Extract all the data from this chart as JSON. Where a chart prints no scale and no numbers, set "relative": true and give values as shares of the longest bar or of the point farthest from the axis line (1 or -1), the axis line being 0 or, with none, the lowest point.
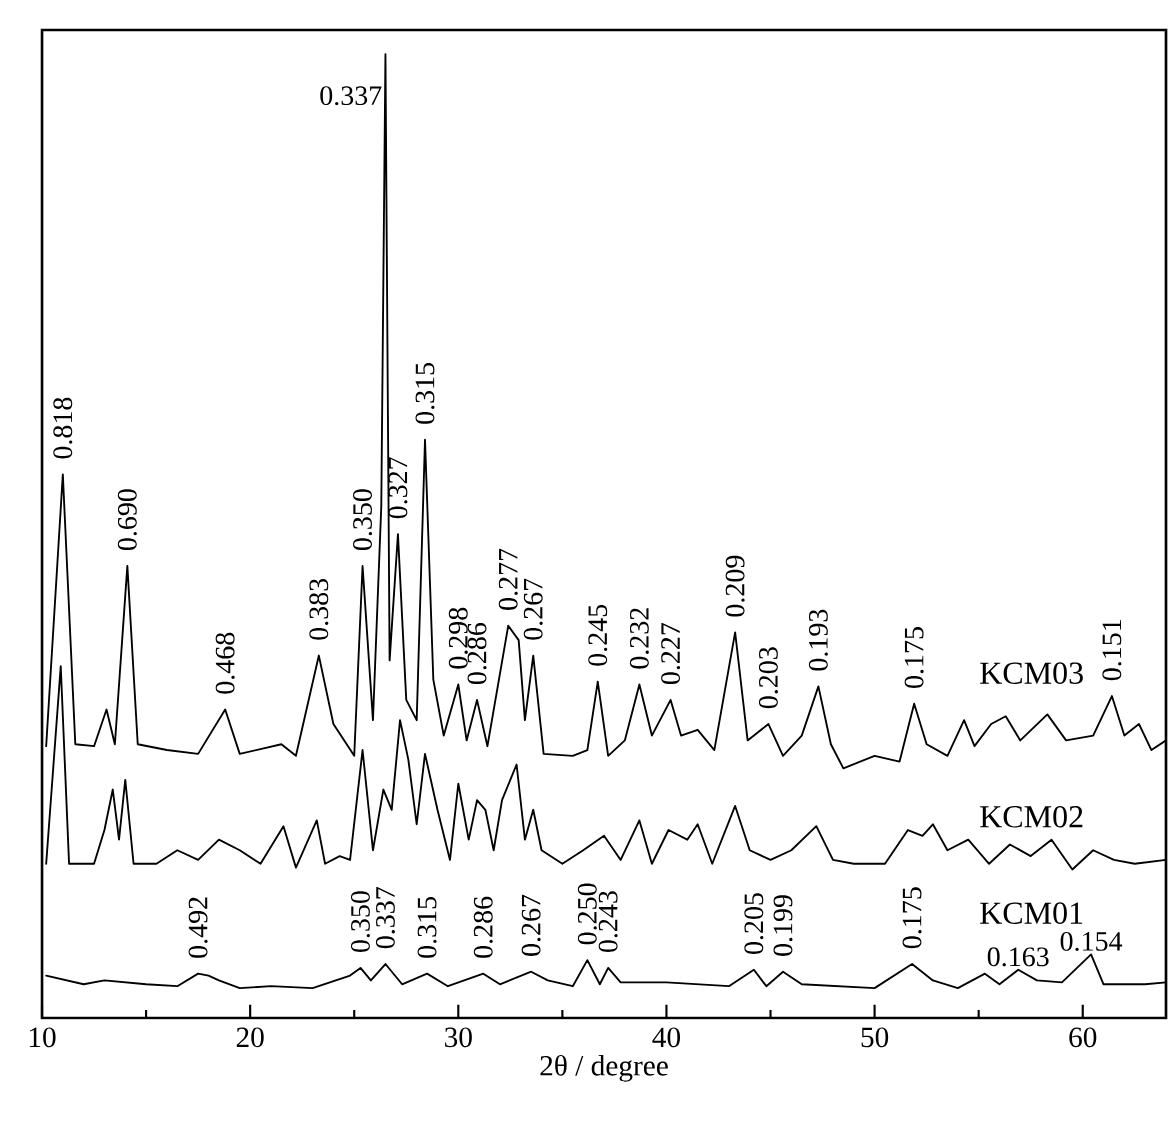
{
  "chart_data": {
    "type": "line",
    "relative": true,
    "xlabel": "2θ / degree",
    "xlim": [
      10,
      64
    ],
    "xticks": [
      10,
      20,
      30,
      40,
      50,
      60
    ],
    "series": [
      {
        "name": "KCM03",
        "color": "#000000",
        "x": [
          10.2,
          11.0,
          11.6,
          12.5,
          13.1,
          13.5,
          14.1,
          14.6,
          16,
          17.5,
          18.8,
          19.5,
          21.5,
          22.2,
          23.3,
          24,
          25,
          25.4,
          25.9,
          26.3,
          26.5,
          26.7,
          27.1,
          27.5,
          28.0,
          28.4,
          28.8,
          29.3,
          30.0,
          30.4,
          30.9,
          31.4,
          32.4,
          32.9,
          33.2,
          33.6,
          34.1,
          35.5,
          36.2,
          36.7,
          37.2,
          38.0,
          38.7,
          39.3,
          40.2,
          40.7,
          41.5,
          42.3,
          43.3,
          43.9,
          44.9,
          45.6,
          46.5,
          47.3,
          47.9,
          48.5,
          50,
          51.2,
          51.9,
          52.5,
          53.5,
          54.3,
          54.8,
          55.6,
          56.3,
          57,
          58.3,
          59.2,
          60.5,
          61.4,
          62,
          62.7,
          63.3,
          64
        ],
        "values": [
          0.282,
          0.564,
          0.284,
          0.282,
          0.32,
          0.284,
          0.469,
          0.284,
          0.278,
          0.274,
          0.32,
          0.274,
          0.284,
          0.272,
          0.376,
          0.305,
          0.272,
          0.469,
          0.309,
          0.531,
          1.0,
          0.371,
          0.502,
          0.33,
          0.309,
          0.6,
          0.351,
          0.293,
          0.346,
          0.288,
          0.33,
          0.282,
          0.407,
          0.392,
          0.309,
          0.376,
          0.274,
          0.272,
          0.278,
          0.349,
          0.272,
          0.288,
          0.346,
          0.293,
          0.33,
          0.293,
          0.299,
          0.278,
          0.4,
          0.288,
          0.305,
          0.272,
          0.293,
          0.344,
          0.284,
          0.259,
          0.272,
          0.266,
          0.326,
          0.284,
          0.272,
          0.309,
          0.282,
          0.305,
          0.313,
          0.288,
          0.315,
          0.288,
          0.293,
          0.334,
          0.293,
          0.305,
          0.278,
          0.288
        ]
      },
      {
        "name": "KCM02",
        "color": "#000000",
        "x": [
          10.2,
          10.9,
          11.3,
          12.5,
          13.0,
          13.4,
          13.7,
          14.0,
          14.4,
          15.5,
          16.5,
          17.5,
          18.5,
          19.5,
          20.5,
          21.6,
          22.2,
          23.2,
          23.6,
          24.3,
          24.8,
          25.4,
          25.9,
          26.4,
          26.8,
          27.2,
          27.6,
          28.0,
          28.4,
          29.0,
          29.6,
          30.0,
          30.5,
          30.9,
          31.3,
          31.7,
          32.1,
          32.8,
          33.2,
          33.6,
          34.0,
          35.0,
          36,
          37,
          37.8,
          38.7,
          39.3,
          40.1,
          41,
          41.5,
          42.2,
          43.3,
          44,
          45,
          46,
          47.2,
          48,
          49,
          50.5,
          51.6,
          52.3,
          52.8,
          53.5,
          54.5,
          55.5,
          56.5,
          57.5,
          58.5,
          59.5,
          60.5,
          61.5,
          62.5,
          64
        ],
        "values": [
          0.16,
          0.365,
          0.16,
          0.16,
          0.195,
          0.237,
          0.185,
          0.247,
          0.16,
          0.16,
          0.174,
          0.164,
          0.185,
          0.174,
          0.16,
          0.199,
          0.156,
          0.205,
          0.16,
          0.168,
          0.164,
          0.278,
          0.174,
          0.237,
          0.216,
          0.309,
          0.268,
          0.201,
          0.274,
          0.216,
          0.164,
          0.243,
          0.185,
          0.226,
          0.216,
          0.174,
          0.226,
          0.263,
          0.185,
          0.216,
          0.174,
          0.16,
          0.174,
          0.189,
          0.164,
          0.205,
          0.16,
          0.195,
          0.185,
          0.201,
          0.16,
          0.22,
          0.174,
          0.164,
          0.174,
          0.199,
          0.164,
          0.16,
          0.16,
          0.195,
          0.189,
          0.201,
          0.174,
          0.185,
          0.16,
          0.18,
          0.168,
          0.185,
          0.154,
          0.174,
          0.164,
          0.16,
          0.164
        ]
      },
      {
        "name": "KCM01",
        "color": "#000000",
        "x": [
          10.2,
          12,
          13,
          15,
          16.5,
          17.5,
          18.0,
          18.5,
          19.5,
          21,
          23,
          24.8,
          25.3,
          25.8,
          26.5,
          27.3,
          28.5,
          29.5,
          31.2,
          32,
          33.5,
          34.3,
          35.5,
          36.2,
          36.8,
          37.2,
          37.8,
          40,
          43,
          44.2,
          44.8,
          45.6,
          46.5,
          50,
          51.8,
          52.8,
          54,
          55.3,
          56,
          56.9,
          57.8,
          59,
          60.4,
          61,
          63,
          64
        ],
        "values": [
          0.044,
          0.035,
          0.039,
          0.035,
          0.033,
          0.046,
          0.044,
          0.039,
          0.031,
          0.033,
          0.031,
          0.044,
          0.052,
          0.039,
          0.056,
          0.035,
          0.046,
          0.033,
          0.046,
          0.035,
          0.048,
          0.039,
          0.033,
          0.06,
          0.035,
          0.052,
          0.037,
          0.037,
          0.033,
          0.05,
          0.033,
          0.048,
          0.035,
          0.031,
          0.056,
          0.039,
          0.031,
          0.046,
          0.035,
          0.05,
          0.039,
          0.037,
          0.066,
          0.035,
          0.035,
          0.037
        ]
      }
    ],
    "annotations": [
      {
        "text": "0.818",
        "x": 11.0,
        "y": 0.564
      },
      {
        "text": "0.690",
        "x": 14.1,
        "y": 0.469
      },
      {
        "text": "0.468",
        "x": 18.8,
        "y": 0.32
      },
      {
        "text": "0.383",
        "x": 23.3,
        "y": 0.376
      },
      {
        "text": "0.350",
        "x": 25.4,
        "y": 0.469
      },
      {
        "text": "0.337",
        "x": 26.5,
        "y": 1.0
      },
      {
        "text": "0.327",
        "x": 27.1,
        "y": 0.502
      },
      {
        "text": "0.315",
        "x": 28.4,
        "y": 0.6
      },
      {
        "text": "0.298",
        "x": 30.0,
        "y": 0.346
      },
      {
        "text": "0.286",
        "x": 30.9,
        "y": 0.33
      },
      {
        "text": "0.277",
        "x": 32.4,
        "y": 0.407
      },
      {
        "text": "0.267",
        "x": 33.6,
        "y": 0.376
      },
      {
        "text": "0.245",
        "x": 36.7,
        "y": 0.349
      },
      {
        "text": "0.232",
        "x": 38.7,
        "y": 0.346
      },
      {
        "text": "0.227",
        "x": 40.2,
        "y": 0.33
      },
      {
        "text": "0.209",
        "x": 43.3,
        "y": 0.4
      },
      {
        "text": "0.203",
        "x": 44.9,
        "y": 0.305
      },
      {
        "text": "0.193",
        "x": 47.3,
        "y": 0.344
      },
      {
        "text": "0.175",
        "x": 51.9,
        "y": 0.326
      },
      {
        "text": "0.151",
        "x": 61.4,
        "y": 0.334
      },
      {
        "text": "0.492",
        "x": 17.5,
        "y": 0.046
      },
      {
        "text": "0.350",
        "x": 25.3,
        "y": 0.052
      },
      {
        "text": "0.337",
        "x": 26.5,
        "y": 0.056
      },
      {
        "text": "0.315",
        "x": 28.5,
        "y": 0.046
      },
      {
        "text": "0.286",
        "x": 31.2,
        "y": 0.046
      },
      {
        "text": "0.267",
        "x": 33.5,
        "y": 0.048
      },
      {
        "text": "0.250",
        "x": 36.2,
        "y": 0.06
      },
      {
        "text": "0.243",
        "x": 37.2,
        "y": 0.052
      },
      {
        "text": "0.205",
        "x": 44.2,
        "y": 0.05
      },
      {
        "text": "0.199",
        "x": 45.6,
        "y": 0.048
      },
      {
        "text": "0.175",
        "x": 51.8,
        "y": 0.056
      },
      {
        "text": "0.163",
        "x": 56.9,
        "y": 0.05
      },
      {
        "text": "0.154",
        "x": 60.4,
        "y": 0.066
      }
    ]
  }
}
